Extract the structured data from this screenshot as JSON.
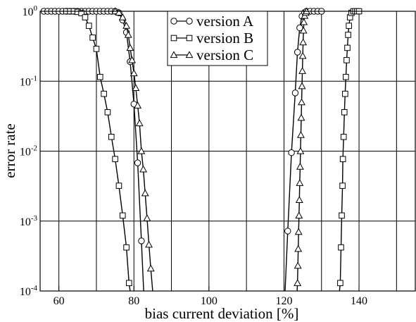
{
  "chart_data": {
    "type": "line",
    "xlabel": "bias current deviation [%]",
    "ylabel": "error rate",
    "xlim": [
      55,
      155
    ],
    "ylim": [
      0.0001,
      1
    ],
    "yscale": "log",
    "grid": true,
    "legend_position": "top-center",
    "x_ticks": [
      {
        "value": 60,
        "label": "60"
      },
      {
        "value": 80,
        "label": "80"
      },
      {
        "value": 100,
        "label": "100"
      },
      {
        "value": 120,
        "label": "120"
      },
      {
        "value": 140,
        "label": "140"
      }
    ],
    "y_ticks": [
      {
        "value": 1,
        "base": "10",
        "exp": "0"
      },
      {
        "value": 0.1,
        "base": "10",
        "exp": "-1"
      },
      {
        "value": 0.01,
        "base": "10",
        "exp": "-2"
      },
      {
        "value": 0.001,
        "base": "10",
        "exp": "-3"
      },
      {
        "value": 0.0001,
        "base": "10",
        "exp": "-4"
      }
    ],
    "series": [
      {
        "name": "version A",
        "marker": "circle",
        "segments": [
          [
            [
              56,
              1
            ],
            [
              57,
              1
            ],
            [
              58,
              1
            ],
            [
              59,
              1
            ],
            [
              60,
              1
            ],
            [
              61,
              1
            ],
            [
              62,
              1
            ],
            [
              63,
              1
            ],
            [
              64,
              1
            ],
            [
              65,
              1
            ],
            [
              66,
              1
            ],
            [
              67,
              1
            ],
            [
              68,
              1
            ],
            [
              69,
              1
            ],
            [
              70,
              1
            ],
            [
              71,
              1
            ],
            [
              72,
              1
            ],
            [
              73,
              1
            ],
            [
              74,
              1
            ],
            [
              75,
              1
            ],
            [
              76,
              0.95
            ],
            [
              77,
              0.75
            ],
            [
              78,
              0.5
            ],
            [
              79,
              0.19
            ],
            [
              80,
              0.047
            ],
            [
              81,
              0.0068
            ],
            [
              82,
              0.00052
            ],
            [
              82.6,
              0.0001
            ]
          ],
          [
            [
              120.3,
              0.0001
            ],
            [
              121,
              0.00072
            ],
            [
              122,
              0.0095
            ],
            [
              123,
              0.068
            ],
            [
              123.6,
              0.26
            ],
            [
              124.2,
              0.58
            ],
            [
              124.8,
              0.85
            ],
            [
              125.5,
              0.96
            ],
            [
              126,
              1
            ],
            [
              127,
              1
            ],
            [
              128,
              1
            ],
            [
              129,
              1
            ],
            [
              130,
              1
            ]
          ]
        ]
      },
      {
        "name": "version B",
        "marker": "square",
        "segments": [
          [
            [
              62,
              1
            ],
            [
              63,
              1
            ],
            [
              64,
              1
            ],
            [
              65,
              0.98
            ],
            [
              66,
              0.94
            ],
            [
              67,
              0.82
            ],
            [
              68,
              0.62
            ],
            [
              69,
              0.42
            ],
            [
              70,
              0.29
            ],
            [
              71,
              0.115
            ],
            [
              72,
              0.066
            ],
            [
              73,
              0.036
            ],
            [
              74,
              0.016
            ],
            [
              75,
              0.0077
            ],
            [
              76,
              0.0032
            ],
            [
              77,
              0.0012
            ],
            [
              78,
              0.00042
            ],
            [
              78.7,
              0.00013
            ],
            [
              79,
              0.0001
            ]
          ],
          [
            [
              134.8,
              0.0001
            ],
            [
              135,
              0.00013
            ],
            [
              135.2,
              0.00042
            ],
            [
              135.4,
              0.0012
            ],
            [
              135.6,
              0.0032
            ],
            [
              135.7,
              0.0077
            ],
            [
              135.9,
              0.016
            ],
            [
              136.1,
              0.036
            ],
            [
              136.3,
              0.066
            ],
            [
              136.5,
              0.115
            ],
            [
              136.7,
              0.2
            ],
            [
              136.9,
              0.3
            ],
            [
              137.1,
              0.46
            ],
            [
              137.3,
              0.62
            ],
            [
              137.6,
              0.82
            ],
            [
              138,
              0.95
            ],
            [
              138.5,
              1
            ],
            [
              139,
              1
            ],
            [
              139.5,
              1
            ],
            [
              140,
              1
            ]
          ]
        ]
      },
      {
        "name": "version C",
        "marker": "triangle",
        "segments": [
          [
            [
              75,
              1
            ],
            [
              76,
              0.96
            ],
            [
              77,
              0.82
            ],
            [
              78,
              0.62
            ],
            [
              78.5,
              0.46
            ],
            [
              79,
              0.3
            ],
            [
              79.5,
              0.2
            ],
            [
              80,
              0.13
            ],
            [
              80.5,
              0.08
            ],
            [
              81,
              0.045
            ],
            [
              81.5,
              0.025
            ],
            [
              82,
              0.01
            ],
            [
              82.5,
              0.0055
            ],
            [
              83,
              0.0025
            ],
            [
              83.5,
              0.0011
            ],
            [
              84,
              0.00046
            ],
            [
              84.5,
              0.00021
            ],
            [
              85,
              0.0001
            ]
          ],
          [
            [
              123.5,
              0.0001
            ],
            [
              123.6,
              0.00013
            ],
            [
              123.7,
              0.00023
            ],
            [
              123.8,
              0.0004
            ],
            [
              123.9,
              0.0007
            ],
            [
              124.0,
              0.0012
            ],
            [
              124.1,
              0.002
            ],
            [
              124.2,
              0.0035
            ],
            [
              124.3,
              0.006
            ],
            [
              124.4,
              0.01
            ],
            [
              124.5,
              0.017
            ],
            [
              124.6,
              0.03
            ],
            [
              124.7,
              0.05
            ],
            [
              124.8,
              0.085
            ],
            [
              124.9,
              0.14
            ],
            [
              125.0,
              0.23
            ],
            [
              125.1,
              0.36
            ],
            [
              125.2,
              0.53
            ],
            [
              125.3,
              0.7
            ],
            [
              125.5,
              0.86
            ],
            [
              125.8,
              0.95
            ],
            [
              126,
              1
            ]
          ]
        ]
      }
    ]
  }
}
